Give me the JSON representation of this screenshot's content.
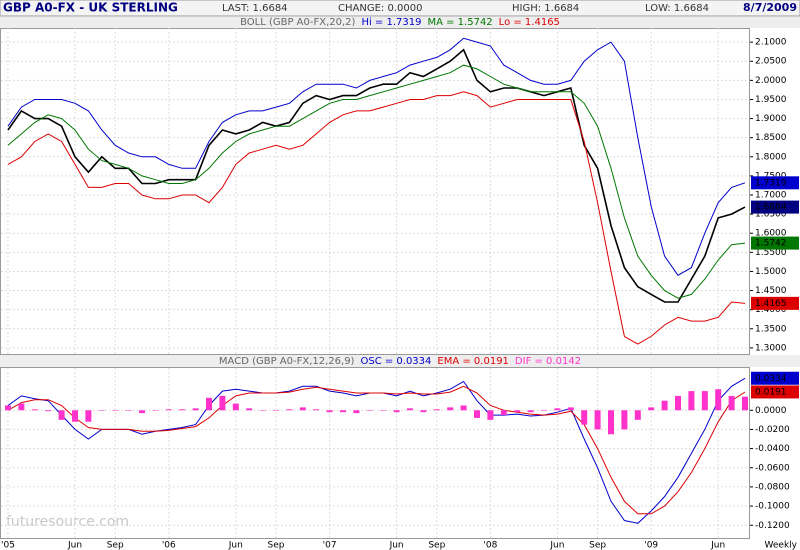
{
  "header": {
    "title": "GBP A0-FX - UK STERLING",
    "last": "LAST: 1.6684",
    "change": "CHANGE: 0.0000",
    "high": "HIGH: 1.6684",
    "low": "LOW: 1.6684",
    "date": "8/7/2009"
  },
  "watermark": "futuresource.com",
  "chart_data": [
    {
      "type": "line",
      "title": "BOLL (GBP A0-FX,20,2)",
      "ylim": [
        1.284,
        2.137
      ],
      "yticks": [
        {
          "value": 1.3,
          "label": "1.3000"
        },
        {
          "value": 1.35,
          "label": "1.3500"
        },
        {
          "value": 1.4,
          "label": "1.4000"
        },
        {
          "value": 1.45,
          "label": "1.4500"
        },
        {
          "value": 1.5,
          "label": "1.5000"
        },
        {
          "value": 1.55,
          "label": "1.5500"
        },
        {
          "value": 1.6,
          "label": "1.6000"
        },
        {
          "value": 1.65,
          "label": "1.6500"
        },
        {
          "value": 1.7,
          "label": "1.7000"
        },
        {
          "value": 1.75,
          "label": "1.7500"
        },
        {
          "value": 1.8,
          "label": "1.8000"
        },
        {
          "value": 1.85,
          "label": "1.8500"
        },
        {
          "value": 1.9,
          "label": "1.9000"
        },
        {
          "value": 1.95,
          "label": "1.9500"
        },
        {
          "value": 2.0,
          "label": "2.0000"
        },
        {
          "value": 2.05,
          "label": "2.0500"
        },
        {
          "value": 2.1,
          "label": "2.1000"
        }
      ],
      "grid": true,
      "series": [
        {
          "color": "#000000",
          "values": [
            1.87,
            1.92,
            1.9,
            1.9,
            1.88,
            1.8,
            1.76,
            1.8,
            1.77,
            1.77,
            1.73,
            1.73,
            1.74,
            1.74,
            1.74,
            1.83,
            1.87,
            1.86,
            1.87,
            1.89,
            1.88,
            1.89,
            1.94,
            1.96,
            1.95,
            1.96,
            1.96,
            1.98,
            1.99,
            1.99,
            2.02,
            2.01,
            2.03,
            2.05,
            2.08,
            2.0,
            1.97,
            1.98,
            1.98,
            1.97,
            1.96,
            1.97,
            1.98,
            1.83,
            1.77,
            1.62,
            1.51,
            1.46,
            1.44,
            1.42,
            1.42,
            1.48,
            1.54,
            1.64,
            1.65,
            1.6684
          ]
        },
        {
          "name": "Hi = 1.7319",
          "color": "#0000cc",
          "values": [
            1.88,
            1.93,
            1.95,
            1.95,
            1.95,
            1.94,
            1.92,
            1.87,
            1.83,
            1.81,
            1.8,
            1.8,
            1.78,
            1.77,
            1.77,
            1.84,
            1.89,
            1.91,
            1.92,
            1.92,
            1.93,
            1.94,
            1.97,
            1.99,
            1.99,
            1.99,
            1.98,
            2.0,
            2.01,
            2.02,
            2.04,
            2.05,
            2.06,
            2.08,
            2.11,
            2.1,
            2.09,
            2.04,
            2.02,
            2.0,
            1.99,
            1.99,
            2.0,
            2.05,
            2.08,
            2.1,
            2.05,
            1.85,
            1.67,
            1.54,
            1.49,
            1.51,
            1.6,
            1.68,
            1.72,
            1.7319
          ]
        },
        {
          "name": "MA = 1.5742",
          "color": "#007700",
          "values": [
            1.83,
            1.86,
            1.89,
            1.91,
            1.9,
            1.87,
            1.82,
            1.79,
            1.78,
            1.77,
            1.75,
            1.74,
            1.73,
            1.73,
            1.74,
            1.77,
            1.81,
            1.84,
            1.86,
            1.87,
            1.88,
            1.88,
            1.9,
            1.92,
            1.94,
            1.95,
            1.95,
            1.96,
            1.97,
            1.98,
            1.99,
            2.0,
            2.01,
            2.02,
            2.04,
            2.03,
            2.01,
            1.99,
            1.98,
            1.97,
            1.97,
            1.97,
            1.97,
            1.94,
            1.88,
            1.77,
            1.64,
            1.54,
            1.49,
            1.45,
            1.43,
            1.44,
            1.48,
            1.53,
            1.57,
            1.5742
          ]
        },
        {
          "name": "Lo = 1.4165",
          "color": "#dd0000",
          "values": [
            1.78,
            1.8,
            1.84,
            1.86,
            1.84,
            1.78,
            1.72,
            1.72,
            1.73,
            1.73,
            1.7,
            1.69,
            1.69,
            1.7,
            1.7,
            1.68,
            1.72,
            1.78,
            1.81,
            1.82,
            1.83,
            1.82,
            1.83,
            1.86,
            1.89,
            1.91,
            1.92,
            1.92,
            1.93,
            1.94,
            1.95,
            1.95,
            1.96,
            1.96,
            1.97,
            1.96,
            1.93,
            1.94,
            1.95,
            1.95,
            1.95,
            1.95,
            1.95,
            1.84,
            1.68,
            1.5,
            1.33,
            1.31,
            1.33,
            1.36,
            1.38,
            1.37,
            1.37,
            1.38,
            1.42,
            1.4165
          ]
        }
      ],
      "tags": [
        {
          "value": 1.7319,
          "label": "1.7319",
          "color": "#0000cc"
        },
        {
          "value": 1.6684,
          "label": "1.6684",
          "color": "#000080"
        },
        {
          "value": 1.5742,
          "label": "1.5742",
          "color": "#007700"
        },
        {
          "value": 1.4165,
          "label": "1.4165",
          "color": "#dd0000"
        }
      ]
    },
    {
      "type": "line",
      "title": "MACD (GBP A0-FX,12,26,9)",
      "categories": [
        "'05",
        null,
        null,
        null,
        null,
        "Jun",
        null,
        null,
        "Sep",
        null,
        null,
        null,
        "'06",
        null,
        null,
        null,
        null,
        "Jun",
        null,
        null,
        "Sep",
        null,
        null,
        null,
        "'07",
        null,
        null,
        null,
        null,
        "Jun",
        null,
        null,
        "Sep",
        null,
        null,
        null,
        "'08",
        null,
        null,
        null,
        null,
        "Jun",
        null,
        null,
        "Sep",
        null,
        null,
        null,
        "'09",
        null,
        null,
        null,
        null,
        "Jun",
        null,
        null
      ],
      "x_note": "Weekly",
      "ylim": [
        -0.1333,
        0.0441
      ],
      "yticks": [
        {
          "value": 0,
          "label": "0.0000"
        },
        {
          "value": -0.02,
          "label": "-0.0200"
        },
        {
          "value": -0.04,
          "label": "-0.0400"
        },
        {
          "value": -0.06,
          "label": "-0.0600"
        },
        {
          "value": -0.08,
          "label": "-0.0800"
        },
        {
          "value": -0.1,
          "label": "-0.1000"
        },
        {
          "value": -0.12,
          "label": "-0.1200"
        }
      ],
      "grid": true,
      "series": [
        {
          "name": "OSC = 0.0334",
          "color": "#0000cc",
          "values": [
            0.005,
            0.015,
            0.012,
            0.01,
            -0.005,
            -0.02,
            -0.03,
            -0.02,
            -0.02,
            -0.02,
            -0.025,
            -0.022,
            -0.02,
            -0.018,
            -0.015,
            0.005,
            0.02,
            0.022,
            0.02,
            0.018,
            0.018,
            0.02,
            0.025,
            0.025,
            0.02,
            0.018,
            0.015,
            0.018,
            0.018,
            0.015,
            0.02,
            0.015,
            0.018,
            0.022,
            0.03,
            0.01,
            -0.005,
            -0.005,
            -0.004,
            -0.006,
            -0.005,
            -0.002,
            0.002,
            -0.03,
            -0.06,
            -0.095,
            -0.115,
            -0.118,
            -0.105,
            -0.09,
            -0.07,
            -0.045,
            -0.02,
            0.01,
            0.025,
            0.0334
          ]
        },
        {
          "name": "EMA = 0.0191",
          "color": "#dd0000",
          "values": [
            0.0,
            0.008,
            0.011,
            0.011,
            0.005,
            -0.008,
            -0.018,
            -0.02,
            -0.02,
            -0.02,
            -0.022,
            -0.022,
            -0.021,
            -0.019,
            -0.017,
            -0.008,
            0.005,
            0.015,
            0.018,
            0.018,
            0.018,
            0.019,
            0.022,
            0.024,
            0.022,
            0.02,
            0.018,
            0.018,
            0.018,
            0.017,
            0.018,
            0.017,
            0.017,
            0.019,
            0.025,
            0.018,
            0.005,
            0.0,
            -0.002,
            -0.004,
            -0.005,
            -0.004,
            -0.001,
            -0.015,
            -0.04,
            -0.07,
            -0.095,
            -0.108,
            -0.108,
            -0.1,
            -0.085,
            -0.065,
            -0.04,
            -0.012,
            0.01,
            0.0191
          ]
        },
        {
          "name": "DIF = 0.0142",
          "color": "#ff33cc",
          "mark": "bar",
          "values": [
            0.005,
            0.007,
            0.001,
            -0.001,
            -0.01,
            -0.012,
            -0.012,
            0.0,
            0.0,
            0.0,
            -0.003,
            0.0,
            0.001,
            0.001,
            0.002,
            0.013,
            0.015,
            0.007,
            0.002,
            0.0,
            0.0,
            0.001,
            0.003,
            0.001,
            -0.002,
            -0.002,
            -0.003,
            0.0,
            0.0,
            -0.002,
            0.002,
            -0.002,
            0.001,
            0.003,
            0.005,
            -0.008,
            -0.01,
            -0.005,
            -0.002,
            -0.002,
            0.0,
            0.002,
            0.003,
            -0.015,
            -0.02,
            -0.025,
            -0.02,
            -0.01,
            0.003,
            0.01,
            0.015,
            0.02,
            0.02,
            0.022,
            0.015,
            0.0142
          ]
        }
      ],
      "tags": [
        {
          "value": 0.0334,
          "label": "0.0334",
          "color": "#0000cc"
        },
        {
          "value": 0.0191,
          "label": "0.0191",
          "color": "#dd0000"
        }
      ]
    }
  ]
}
